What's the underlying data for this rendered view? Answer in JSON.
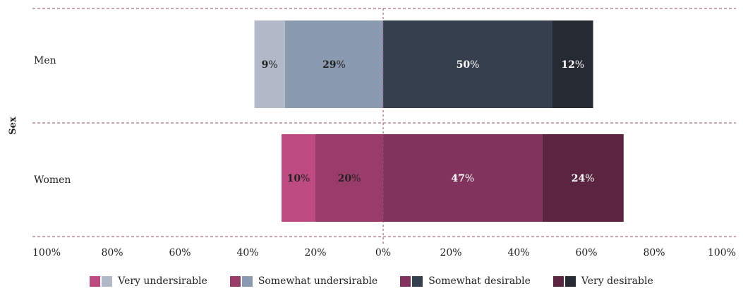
{
  "chart_data": {
    "type": "bar",
    "orientation": "horizontal",
    "stacking": "diverging",
    "ylabel": "Sex",
    "categories": [
      "Men",
      "Women"
    ],
    "x_ticks": [
      "100%",
      "80%",
      "60%",
      "40%",
      "20%",
      "0%",
      "20%",
      "40%",
      "60%",
      "80%",
      "100%"
    ],
    "xlim": [
      -100,
      100
    ],
    "series": [
      {
        "name": "Very undersirable",
        "side": "negative",
        "values": [
          9,
          10
        ],
        "labels": [
          "9%",
          "10%"
        ]
      },
      {
        "name": "Somewhat undersirable",
        "side": "negative",
        "values": [
          29,
          20
        ],
        "labels": [
          "29%",
          "20%"
        ]
      },
      {
        "name": "Somewhat desirable",
        "side": "positive",
        "values": [
          50,
          47
        ],
        "labels": [
          "50%",
          "47%"
        ]
      },
      {
        "name": "Very desirable",
        "side": "positive",
        "values": [
          12,
          24
        ],
        "labels": [
          "12%",
          "24%"
        ]
      }
    ],
    "colors": {
      "Men": [
        "#b1b9c8",
        "#8a9ab0",
        "#363f4e",
        "#252a33"
      ],
      "Women": [
        "#bd4b82",
        "#9a3c69",
        "#82335d",
        "#5b2540"
      ]
    },
    "label_colors": {
      "Men": [
        "#222222",
        "#222222",
        "#ffffff",
        "#ffffff"
      ],
      "Women": [
        "#222222",
        "#222222",
        "#ffffff",
        "#ffffff"
      ]
    },
    "gridline_color": "#9b4b63",
    "legend_position": "bottom"
  }
}
